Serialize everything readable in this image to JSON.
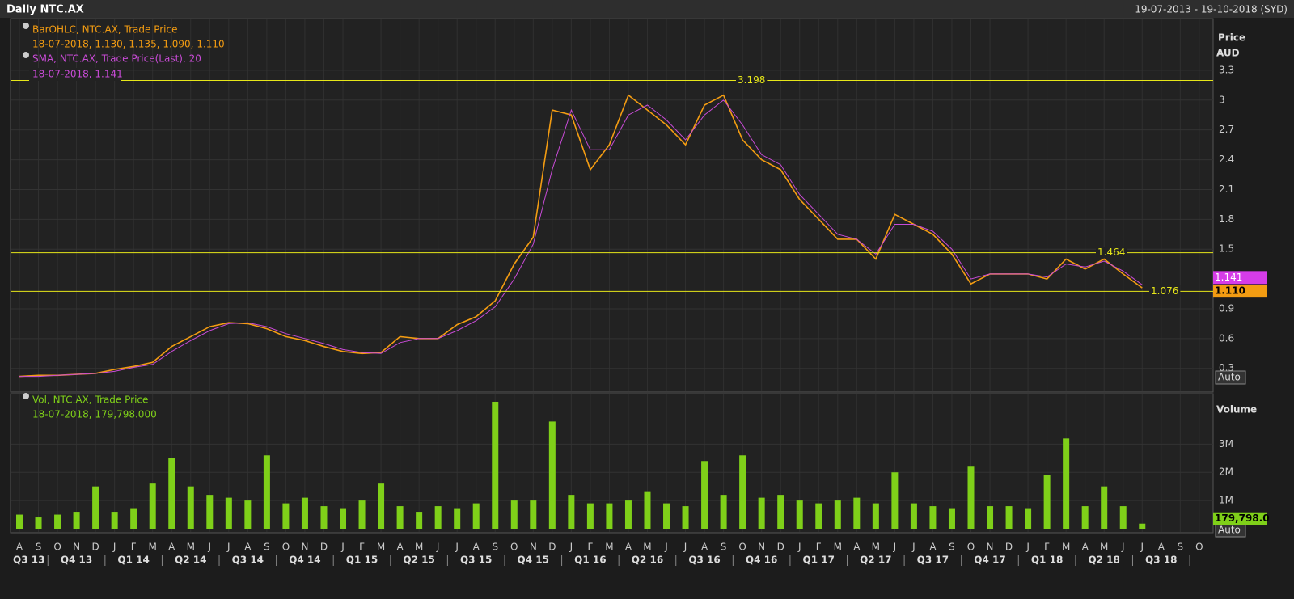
{
  "chart_data": [
    {
      "type": "line",
      "title": "Daily NTC.AX",
      "date_range": "19-07-2013 - 19-10-2018 (SYD)",
      "y_label": "Price",
      "y_unit": "AUD",
      "auto_label": "Auto",
      "categories": [
        "A",
        "S",
        "O",
        "N",
        "D",
        "J",
        "F",
        "M",
        "A",
        "M",
        "J",
        "J",
        "A",
        "S",
        "O",
        "N",
        "D",
        "J",
        "F",
        "M",
        "A",
        "M",
        "J",
        "J",
        "A",
        "S",
        "O",
        "N",
        "D",
        "J",
        "F",
        "M",
        "A",
        "M",
        "J",
        "J",
        "A",
        "S",
        "O",
        "N",
        "D",
        "J",
        "F",
        "M",
        "A",
        "M",
        "J",
        "J",
        "A",
        "S",
        "O",
        "N",
        "D",
        "J",
        "F",
        "M",
        "A",
        "M",
        "J",
        "J",
        "A",
        "S",
        "O"
      ],
      "quarters": [
        "Q3 13",
        "Q4 13",
        "Q1 14",
        "Q2 14",
        "Q3 14",
        "Q4 14",
        "Q1 15",
        "Q2 15",
        "Q3 15",
        "Q4 15",
        "Q1 16",
        "Q2 16",
        "Q3 16",
        "Q4 16",
        "Q1 17",
        "Q2 17",
        "Q3 17",
        "Q4 17",
        "Q1 18",
        "Q2 18",
        "Q3 18"
      ],
      "series": [
        {
          "name": "BarOHLC, NTC.AX, Trade Price",
          "detail": "18-07-2018, 1.130, 1.135, 1.090, 1.110",
          "color": "#f39c12",
          "values": [
            0.22,
            0.23,
            0.23,
            0.24,
            0.25,
            0.29,
            0.32,
            0.36,
            0.52,
            0.62,
            0.72,
            0.76,
            0.75,
            0.7,
            0.62,
            0.58,
            0.52,
            0.47,
            0.45,
            0.46,
            0.62,
            0.6,
            0.6,
            0.74,
            0.82,
            0.98,
            1.35,
            1.62,
            2.9,
            2.85,
            2.3,
            2.55,
            3.05,
            2.9,
            2.75,
            2.55,
            2.95,
            3.05,
            2.6,
            2.4,
            2.3,
            2.0,
            1.8,
            1.6,
            1.6,
            1.4,
            1.85,
            1.75,
            1.65,
            1.45,
            1.15,
            1.25,
            1.25,
            1.25,
            1.2,
            1.4,
            1.3,
            1.4,
            1.25,
            1.11,
            null,
            null,
            null
          ]
        },
        {
          "name": "SMA, NTC.AX, Trade Price(Last),  20",
          "detail": "18-07-2018, 1.141",
          "color": "#c84bd6",
          "values": [
            0.22,
            0.22,
            0.23,
            0.24,
            0.25,
            0.27,
            0.31,
            0.34,
            0.47,
            0.58,
            0.68,
            0.75,
            0.76,
            0.72,
            0.65,
            0.6,
            0.55,
            0.49,
            0.46,
            0.45,
            0.56,
            0.6,
            0.6,
            0.68,
            0.78,
            0.92,
            1.2,
            1.55,
            2.3,
            2.9,
            2.5,
            2.5,
            2.85,
            2.95,
            2.8,
            2.6,
            2.85,
            3.0,
            2.75,
            2.45,
            2.35,
            2.05,
            1.85,
            1.65,
            1.6,
            1.45,
            1.75,
            1.75,
            1.68,
            1.5,
            1.2,
            1.25,
            1.25,
            1.25,
            1.22,
            1.35,
            1.32,
            1.38,
            1.28,
            1.141,
            null,
            null,
            null
          ]
        }
      ],
      "hlines": [
        3.198,
        1.464,
        1.076
      ],
      "hline_color": "#e6e619",
      "tags": [
        {
          "value": 1.141,
          "color": "#d63ce8"
        },
        {
          "value": {
            "value": 1.11,
            "label": "1.110"
          },
          "color": "#f39c12"
        }
      ],
      "ylim": [
        0.07,
        3.82
      ],
      "yticks": [
        0.3,
        0.6,
        0.9,
        1.5,
        1.8,
        2.1,
        2.4,
        2.7,
        3,
        3.3
      ],
      "grid": true
    },
    {
      "type": "bar",
      "y_label": "Volume",
      "auto_label": "Auto",
      "series": [
        {
          "name": "Vol, NTC.AX, Trade Price",
          "detail": "18-07-2018, 179,798.000",
          "color": "#7fd019",
          "values": [
            500000,
            400000,
            500000,
            600000,
            1500000,
            600000,
            700000,
            1600000,
            2500000,
            1500000,
            1200000,
            1100000,
            1000000,
            2600000,
            900000,
            1100000,
            800000,
            700000,
            1000000,
            1600000,
            800000,
            600000,
            800000,
            700000,
            900000,
            4500000,
            1000000,
            1000000,
            3800000,
            1200000,
            900000,
            900000,
            1000000,
            1300000,
            900000,
            800000,
            2400000,
            1200000,
            2600000,
            1100000,
            1200000,
            1000000,
            900000,
            1000000,
            1100000,
            900000,
            2000000,
            900000,
            800000,
            700000,
            2200000,
            800000,
            800000,
            700000,
            1900000,
            3200000,
            800000,
            1500000,
            800000,
            179798,
            null,
            null,
            null
          ]
        }
      ],
      "tags": [
        {
          "value": {
            "value": 179798,
            "label": "179,798.0"
          },
          "color": "#7fd019"
        }
      ],
      "ylim": [
        0,
        4700000
      ],
      "yticks": [
        {
          "value": 1000000,
          "label": "1M"
        },
        {
          "value": 2000000,
          "label": "2M"
        },
        {
          "value": 3000000,
          "label": "3M"
        }
      ],
      "grid": true
    }
  ]
}
